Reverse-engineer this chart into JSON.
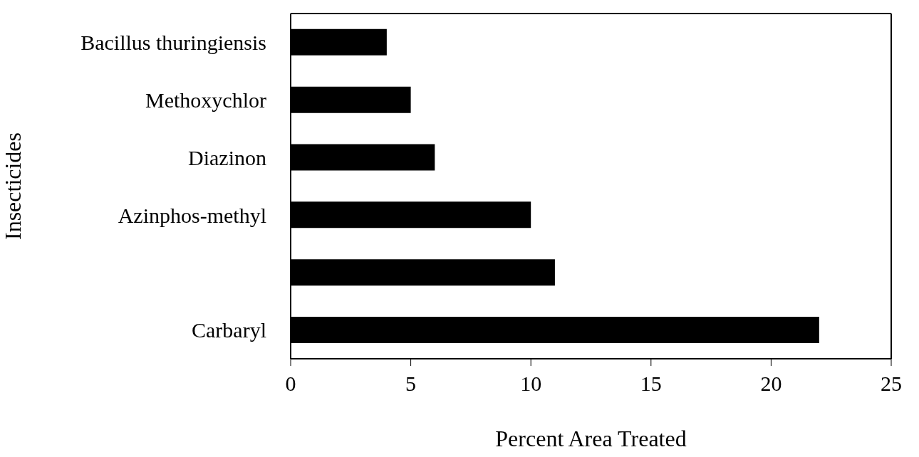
{
  "chart_data": {
    "type": "bar",
    "orientation": "horizontal",
    "categories": [
      "Bacillus thuringiensis",
      "Methoxychlor",
      "Diazinon",
      "Azinphos-methyl",
      null,
      "Carbaryl"
    ],
    "values": [
      4,
      5,
      6,
      10,
      11,
      22
    ],
    "color": "#000000",
    "xlim": [
      0,
      25
    ],
    "xticks": [
      0,
      5,
      10,
      15,
      20,
      25
    ],
    "xlabel": "Percent Area Treated",
    "ylabel": "Insecticides",
    "grid": false
  }
}
